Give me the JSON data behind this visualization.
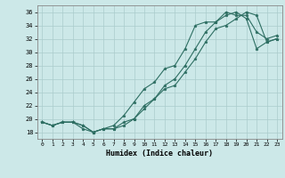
{
  "xlabel": "Humidex (Indice chaleur)",
  "background_color": "#cce8e8",
  "grid_color": "#aacccc",
  "line_color": "#2d6e62",
  "xlim": [
    -0.5,
    23.5
  ],
  "ylim": [
    17.0,
    37.0
  ],
  "yticks": [
    18,
    20,
    22,
    24,
    26,
    28,
    30,
    32,
    34,
    36
  ],
  "xticks": [
    0,
    1,
    2,
    3,
    4,
    5,
    6,
    7,
    8,
    9,
    10,
    11,
    12,
    13,
    14,
    15,
    16,
    17,
    18,
    19,
    20,
    21,
    22,
    23
  ],
  "series1_y": [
    19.5,
    19.0,
    19.5,
    19.5,
    19.0,
    18.0,
    18.5,
    18.5,
    19.0,
    20.0,
    21.5,
    23.0,
    24.5,
    25.0,
    27.0,
    29.0,
    31.5,
    33.5,
    34.0,
    35.0,
    36.0,
    35.5,
    31.5,
    32.0
  ],
  "series2_y": [
    19.5,
    19.0,
    19.5,
    19.5,
    18.5,
    18.0,
    18.5,
    19.0,
    20.5,
    22.5,
    24.5,
    25.5,
    27.5,
    28.0,
    30.5,
    34.0,
    34.5,
    34.5,
    36.0,
    35.5,
    35.5,
    33.0,
    32.0,
    32.5
  ],
  "series3_y": [
    19.5,
    19.0,
    19.5,
    19.5,
    19.0,
    18.0,
    18.5,
    18.5,
    19.5,
    20.0,
    22.0,
    23.0,
    25.0,
    26.0,
    28.0,
    30.5,
    33.0,
    34.5,
    35.5,
    36.0,
    35.0,
    30.5,
    31.5,
    32.0
  ]
}
